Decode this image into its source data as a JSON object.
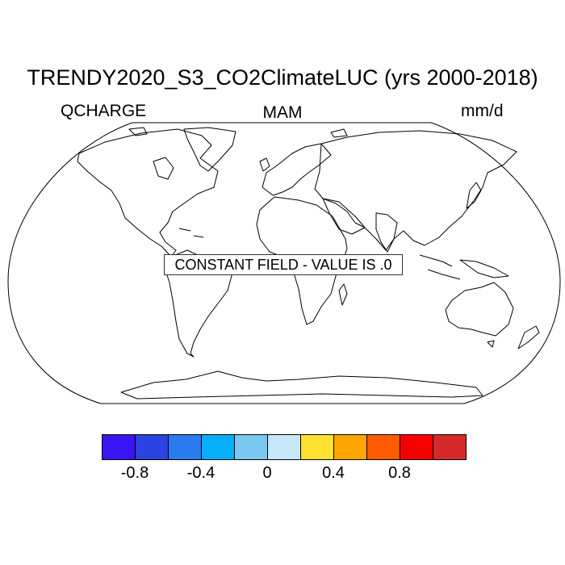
{
  "title": "TRENDY2020_S3_CO2ClimateLUC (yrs 2000-2018)",
  "variable": "QCHARGE",
  "season": "MAM",
  "units": "mm/d",
  "notice": "CONSTANT FIELD - VALUE IS .0",
  "colorbar": {
    "colors": [
      "#3a14f5",
      "#2b43e0",
      "#2a7af0",
      "#07aef8",
      "#7ac8ef",
      "#c8e6f8",
      "#ffe131",
      "#ffa500",
      "#ff5b00",
      "#f80000",
      "#d62a2a"
    ],
    "labels": [
      "-0.8",
      "-0.4",
      "0",
      "0.4",
      "0.8"
    ]
  },
  "colors": {
    "coastline": "#000000",
    "background": "#ffffff"
  }
}
